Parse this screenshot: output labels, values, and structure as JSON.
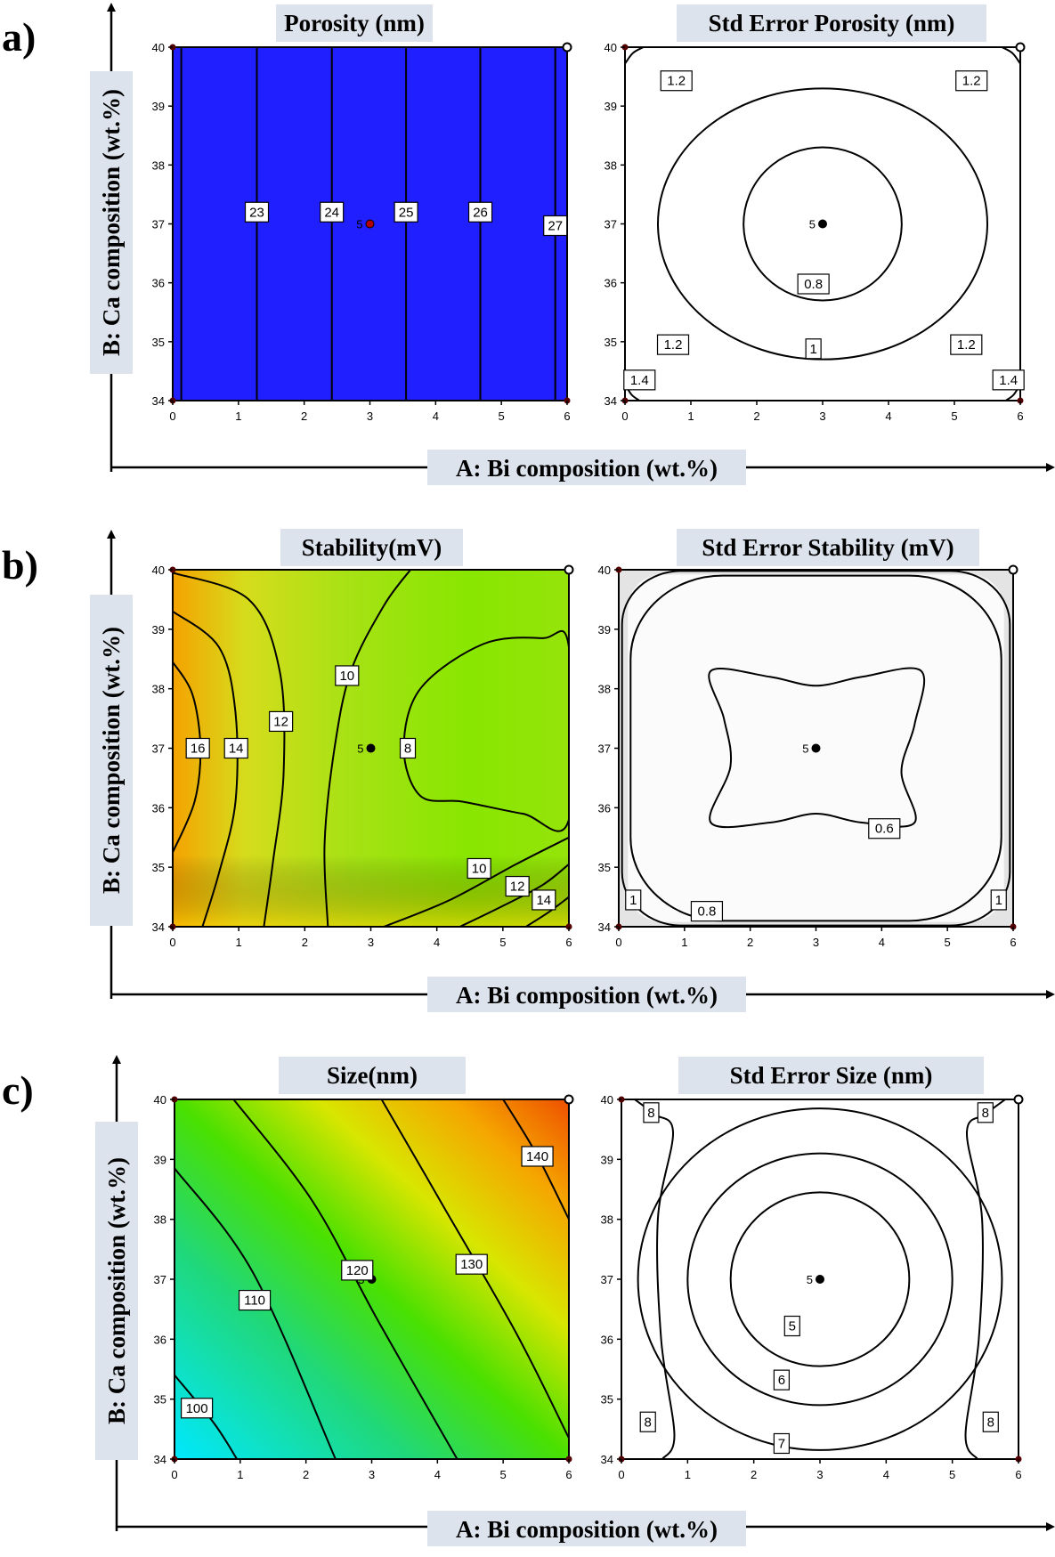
{
  "figure": {
    "rows": [
      {
        "letter": "a)",
        "xaxis_title": "A: Bi composition (wt.%)",
        "yaxis_title": "B: Ca composition (wt.%)"
      },
      {
        "letter": "b)",
        "xaxis_title": "A: Bi composition (wt.%)",
        "yaxis_title": "B: Ca composition (wt.%)"
      },
      {
        "letter": "c)",
        "xaxis_title": "A: Bi composition (wt.%)",
        "yaxis_title": "B: Ca composition (wt.%)"
      }
    ]
  },
  "chart_data": [
    {
      "id": "porosity",
      "type": "heatmap",
      "title": "Porosity (nm)",
      "xlim": [
        0,
        6
      ],
      "ylim": [
        34,
        40
      ],
      "xticks": [
        "0",
        "1",
        "2",
        "3",
        "4",
        "5",
        "6"
      ],
      "yticks": [
        "34",
        "35",
        "36",
        "37",
        "38",
        "39",
        "40"
      ],
      "fill_color": "#1f1fff",
      "contour_labels": [
        {
          "text": "23",
          "x": 1.28,
          "y": 37.2
        },
        {
          "text": "24",
          "x": 2.42,
          "y": 37.2
        },
        {
          "text": "25",
          "x": 3.55,
          "y": 37.2
        },
        {
          "text": "26",
          "x": 4.68,
          "y": 37.2
        },
        {
          "text": "27",
          "x": 5.82,
          "y": 36.97
        }
      ],
      "center_point": {
        "label": "5",
        "x": 3,
        "y": 37
      }
    },
    {
      "id": "std_error_porosity",
      "type": "heatmap",
      "title": "Std Error Porosity (nm)",
      "xlim": [
        0,
        6
      ],
      "ylim": [
        34,
        40
      ],
      "xticks": [
        "0",
        "1",
        "2",
        "3",
        "4",
        "5",
        "6"
      ],
      "yticks": [
        "34",
        "35",
        "36",
        "37",
        "38",
        "39",
        "40"
      ],
      "fill_color": "#ffffff",
      "contour_labels": [
        {
          "text": "1.2",
          "x": 0.78,
          "y": 39.43
        },
        {
          "text": "1.2",
          "x": 5.26,
          "y": 39.43
        },
        {
          "text": "0.8",
          "x": 2.86,
          "y": 35.98
        },
        {
          "text": "1.2",
          "x": 0.73,
          "y": 34.95
        },
        {
          "text": "1",
          "x": 2.86,
          "y": 34.88
        },
        {
          "text": "1.2",
          "x": 5.18,
          "y": 34.95
        },
        {
          "text": "1.4",
          "x": 0.22,
          "y": 34.35
        },
        {
          "text": "1.4",
          "x": 5.82,
          "y": 34.35
        }
      ],
      "center_point": {
        "label": "5",
        "x": 3,
        "y": 37
      }
    },
    {
      "id": "stability",
      "type": "heatmap",
      "title": "Stability(mV)",
      "xlim": [
        0,
        6
      ],
      "ylim": [
        34,
        40
      ],
      "xticks": [
        "0",
        "1",
        "2",
        "3",
        "4",
        "5",
        "6"
      ],
      "yticks": [
        "34",
        "35",
        "36",
        "37",
        "38",
        "39",
        "40"
      ],
      "color_range": [
        "#8ae600",
        "#f5a000"
      ],
      "contour_labels": [
        {
          "text": "16",
          "x": 0.38,
          "y": 37.0
        },
        {
          "text": "14",
          "x": 0.96,
          "y": 37.0
        },
        {
          "text": "12",
          "x": 1.64,
          "y": 37.45
        },
        {
          "text": "10",
          "x": 2.64,
          "y": 38.22
        },
        {
          "text": "8",
          "x": 3.56,
          "y": 37.0
        },
        {
          "text": "10",
          "x": 4.64,
          "y": 34.98
        },
        {
          "text": "12",
          "x": 5.22,
          "y": 34.68
        },
        {
          "text": "14",
          "x": 5.62,
          "y": 34.45
        }
      ],
      "center_point": {
        "label": "5",
        "x": 3,
        "y": 37
      }
    },
    {
      "id": "std_error_stability",
      "type": "heatmap",
      "title": "Std Error Stability (mV)",
      "xlim": [
        0,
        6
      ],
      "ylim": [
        34,
        40
      ],
      "xticks": [
        "0",
        "1",
        "2",
        "3",
        "4",
        "5",
        "6"
      ],
      "yticks": [
        "34",
        "35",
        "36",
        "37",
        "38",
        "39",
        "40"
      ],
      "fill_color": "#ffffff",
      "contour_labels": [
        {
          "text": "0.6",
          "x": 4.04,
          "y": 35.65
        },
        {
          "text": "1",
          "x": 0.22,
          "y": 34.45
        },
        {
          "text": "0.8",
          "x": 1.34,
          "y": 34.26
        },
        {
          "text": "1",
          "x": 5.78,
          "y": 34.45
        }
      ],
      "center_point": {
        "label": "5",
        "x": 3,
        "y": 37
      }
    },
    {
      "id": "size",
      "type": "heatmap",
      "title": "Size(nm)",
      "xlim": [
        0,
        6
      ],
      "ylim": [
        34,
        40
      ],
      "xticks": [
        "0",
        "1",
        "2",
        "3",
        "4",
        "5",
        "6"
      ],
      "yticks": [
        "34",
        "35",
        "36",
        "37",
        "38",
        "39",
        "40"
      ],
      "color_range": [
        "#00e6ff",
        "#f06000"
      ],
      "contour_labels": [
        {
          "text": "100",
          "x": 0.34,
          "y": 34.85
        },
        {
          "text": "110",
          "x": 1.22,
          "y": 36.65
        },
        {
          "text": "120",
          "x": 2.78,
          "y": 37.15
        },
        {
          "text": "130",
          "x": 4.52,
          "y": 37.25
        },
        {
          "text": "140",
          "x": 5.52,
          "y": 39.05
        }
      ],
      "center_point": {
        "label": "5",
        "x": 3,
        "y": 37
      }
    },
    {
      "id": "std_error_size",
      "type": "heatmap",
      "title": "Std Error Size (nm)",
      "xlim": [
        0,
        6
      ],
      "ylim": [
        34,
        40
      ],
      "xticks": [
        "0",
        "1",
        "2",
        "3",
        "4",
        "5",
        "6"
      ],
      "yticks": [
        "34",
        "35",
        "36",
        "37",
        "38",
        "39",
        "40"
      ],
      "fill_color": "#ffffff",
      "contour_labels": [
        {
          "text": "8",
          "x": 0.45,
          "y": 39.78
        },
        {
          "text": "8",
          "x": 5.5,
          "y": 39.78
        },
        {
          "text": "5",
          "x": 2.58,
          "y": 36.22
        },
        {
          "text": "6",
          "x": 2.42,
          "y": 35.32
        },
        {
          "text": "8",
          "x": 0.4,
          "y": 34.62
        },
        {
          "text": "8",
          "x": 5.58,
          "y": 34.62
        },
        {
          "text": "7",
          "x": 2.42,
          "y": 34.26
        }
      ],
      "center_point": {
        "label": "5",
        "x": 3,
        "y": 37
      }
    }
  ]
}
